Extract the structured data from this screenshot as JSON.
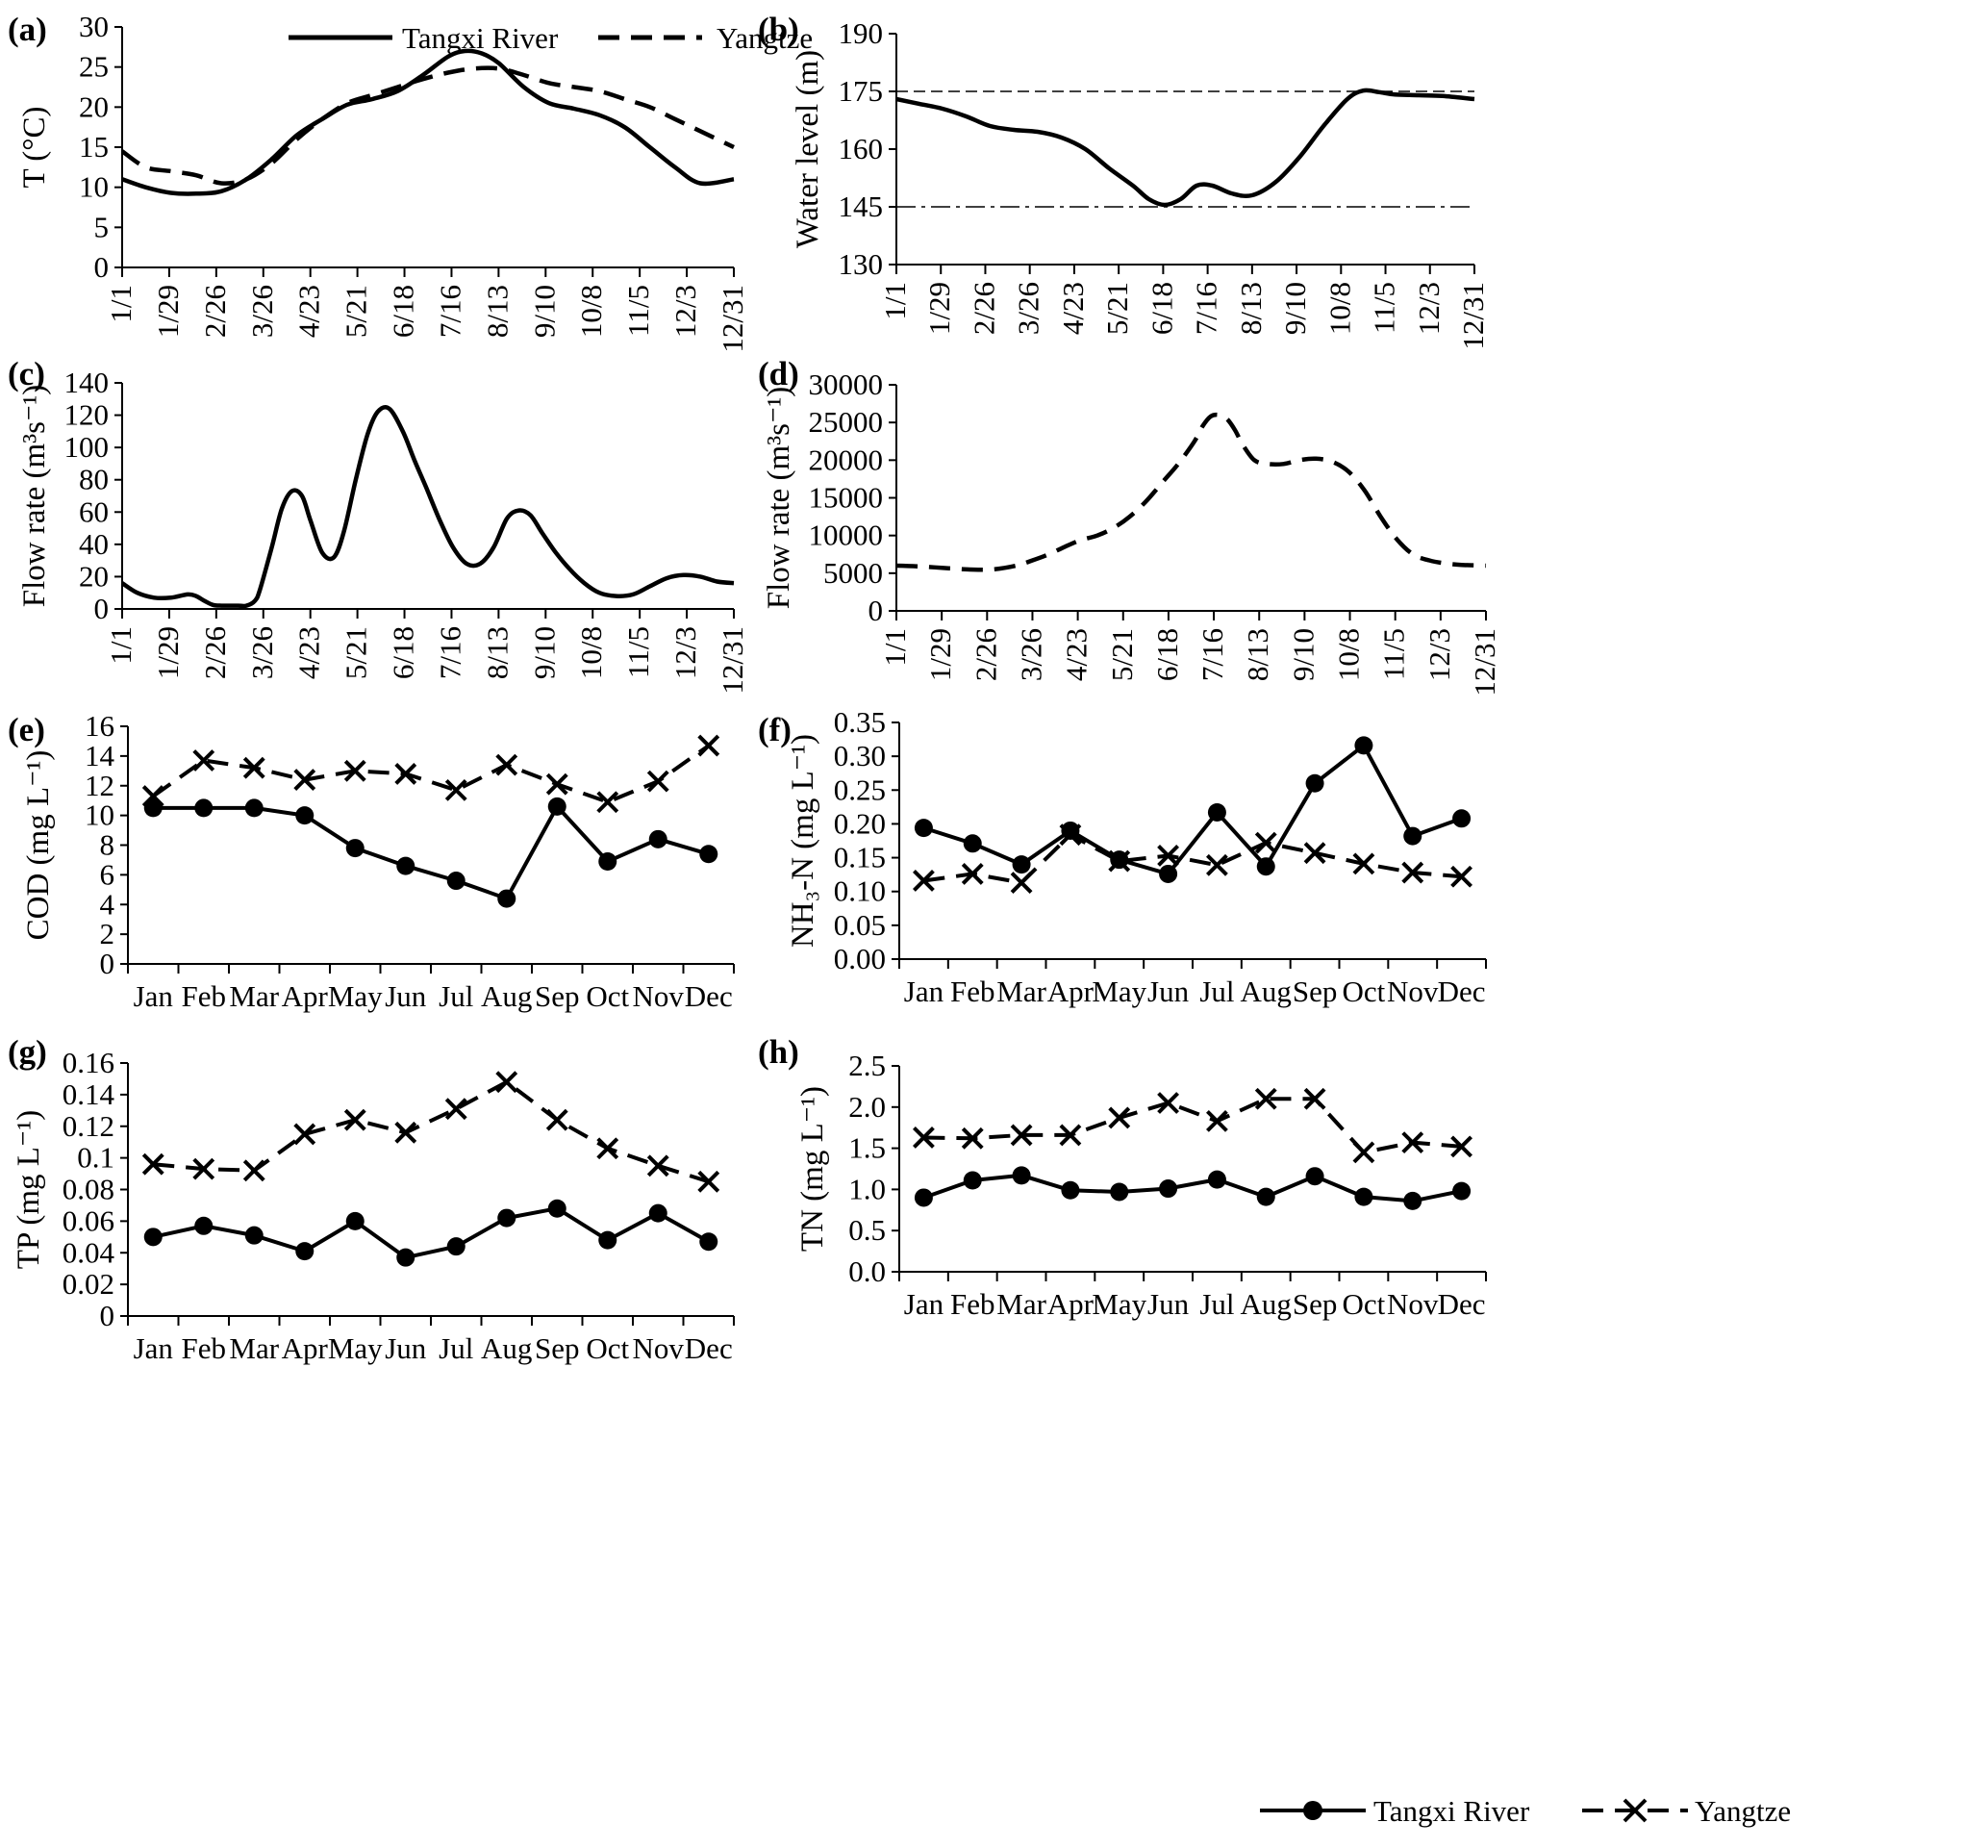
{
  "figure": {
    "legend_top": {
      "series_a": "Tangxi River",
      "series_b": "Yangtze"
    },
    "legend_bottom": {
      "series_a": "Tangxi River",
      "series_b": "Yangtze"
    },
    "date_ticks": [
      "1/1",
      "1/29",
      "2/26",
      "3/26",
      "4/23",
      "5/21",
      "6/18",
      "7/16",
      "8/13",
      "9/10",
      "10/8",
      "11/5",
      "12/3",
      "12/31"
    ],
    "month_ticks": [
      "Jan",
      "Feb",
      "Mar",
      "Apr",
      "May",
      "Jun",
      "Jul",
      "Aug",
      "Sep",
      "Oct",
      "Nov",
      "Dec"
    ]
  },
  "chart_data": [
    {
      "panel": "(a)",
      "type": "line",
      "ylabel": "T (°C)",
      "ylim": [
        0,
        30
      ],
      "yticks": [
        0,
        5,
        10,
        15,
        20,
        25,
        30
      ],
      "y_tick_labels": [
        "0",
        "5",
        "10",
        "15",
        "20",
        "25",
        "30"
      ],
      "x_unit": "day_of_year",
      "xlim": [
        1,
        365
      ],
      "series": [
        {
          "name": "Tangxi River",
          "style": "solid",
          "x": [
            1,
            15,
            30,
            45,
            60,
            75,
            90,
            105,
            120,
            135,
            150,
            165,
            180,
            195,
            205,
            215,
            225,
            240,
            255,
            270,
            285,
            300,
            315,
            330,
            345,
            365
          ],
          "y": [
            11,
            10,
            9.3,
            9.2,
            9.5,
            11,
            13.5,
            16.5,
            18.5,
            20.3,
            21,
            22,
            24,
            26.3,
            27,
            26.7,
            25.5,
            22.5,
            20.5,
            19.8,
            19,
            17.5,
            15,
            12.5,
            10.5,
            11
          ]
        },
        {
          "name": "Yangtze",
          "style": "dashed",
          "x": [
            1,
            15,
            30,
            45,
            60,
            75,
            90,
            105,
            120,
            135,
            150,
            165,
            180,
            195,
            210,
            225,
            240,
            255,
            270,
            285,
            300,
            315,
            330,
            345,
            365
          ],
          "y": [
            14.5,
            12.5,
            12,
            11.5,
            10.5,
            11,
            13,
            16,
            18.5,
            20.5,
            21.5,
            22.5,
            23.5,
            24.3,
            24.8,
            24.8,
            24,
            23,
            22.5,
            22,
            21,
            20,
            18.5,
            17,
            15
          ]
        }
      ]
    },
    {
      "panel": "(b)",
      "type": "line",
      "ylabel": "Water level (m)",
      "ylim": [
        130,
        190
      ],
      "yticks": [
        130,
        145,
        160,
        175,
        190
      ],
      "y_tick_labels": [
        "130",
        "145",
        "160",
        "175",
        "190"
      ],
      "x_unit": "day_of_year",
      "xlim": [
        1,
        365
      ],
      "reference_lines": [
        {
          "y": 175,
          "style": "dashed"
        },
        {
          "y": 145,
          "style": "dashdot"
        }
      ],
      "series": [
        {
          "name": "Yangtze",
          "style": "solid",
          "x": [
            1,
            15,
            30,
            45,
            60,
            75,
            90,
            105,
            120,
            135,
            150,
            160,
            170,
            180,
            190,
            200,
            212,
            225,
            240,
            255,
            270,
            285,
            295,
            305,
            315,
            330,
            345,
            365
          ],
          "y": [
            173,
            171.8,
            170.5,
            168.5,
            166,
            165,
            164.5,
            163,
            160,
            155,
            150.5,
            147,
            145.5,
            147,
            150.5,
            150.5,
            148.5,
            148,
            151.5,
            158,
            166,
            173,
            175.2,
            174.8,
            174.2,
            174,
            173.8,
            173
          ]
        }
      ]
    },
    {
      "panel": "(c)",
      "type": "line",
      "ylabel": "Flow rate (m³s⁻¹)",
      "ylim": [
        0,
        140
      ],
      "yticks": [
        0,
        20,
        40,
        60,
        80,
        100,
        120,
        140
      ],
      "y_tick_labels": [
        "0",
        "20",
        "40",
        "60",
        "80",
        "100",
        "120",
        "140"
      ],
      "x_unit": "day_of_year",
      "xlim": [
        1,
        365
      ],
      "series": [
        {
          "name": "Tangxi River",
          "style": "solid",
          "x": [
            1,
            10,
            20,
            30,
            40,
            45,
            50,
            55,
            60,
            65,
            70,
            75,
            80,
            83,
            90,
            96,
            102,
            108,
            113,
            120,
            127,
            133,
            140,
            147,
            153,
            160,
            168,
            175,
            182,
            190,
            198,
            206,
            214,
            222,
            230,
            237,
            244,
            251,
            259,
            267,
            276,
            285,
            295,
            305,
            315,
            325,
            335,
            345,
            355,
            365
          ],
          "y": [
            16,
            10,
            7,
            7,
            9,
            8,
            5,
            2.5,
            2,
            2,
            2,
            2,
            5,
            12,
            38,
            62,
            73,
            70,
            55,
            35,
            32,
            48,
            80,
            108,
            122,
            124,
            110,
            92,
            75,
            55,
            38,
            28,
            28,
            38,
            56,
            61,
            58,
            47,
            35,
            25,
            16,
            10,
            8,
            9,
            14,
            19,
            21,
            20,
            17,
            16
          ]
        }
      ]
    },
    {
      "panel": "(d)",
      "type": "line",
      "ylabel": "Flow rate (m³s⁻¹)",
      "ylim": [
        0,
        30000
      ],
      "yticks": [
        0,
        5000,
        10000,
        15000,
        20000,
        25000,
        30000
      ],
      "y_tick_labels": [
        "0",
        "5000",
        "10000",
        "15000",
        "20000",
        "25000",
        "30000"
      ],
      "x_unit": "day_of_year",
      "xlim": [
        1,
        365
      ],
      "series": [
        {
          "name": "Yangtze",
          "style": "dashed",
          "x": [
            1,
            15,
            30,
            45,
            60,
            75,
            85,
            95,
            105,
            115,
            125,
            135,
            145,
            155,
            165,
            175,
            185,
            190,
            195,
            200,
            205,
            210,
            215,
            222,
            230,
            240,
            250,
            260,
            270,
            280,
            290,
            300,
            310,
            320,
            330,
            340,
            350,
            365
          ],
          "y": [
            6000,
            5900,
            5700,
            5500,
            5500,
            6000,
            6700,
            7500,
            8500,
            9400,
            10000,
            11000,
            12500,
            14500,
            17000,
            19500,
            22500,
            24500,
            25800,
            26000,
            25500,
            24000,
            22000,
            20000,
            19500,
            19500,
            20000,
            20200,
            19800,
            18500,
            16000,
            12500,
            9500,
            7500,
            6700,
            6300,
            6100,
            6000
          ]
        }
      ]
    },
    {
      "panel": "(e)",
      "type": "line",
      "ylabel": "COD (mg L⁻¹)",
      "ylim": [
        0,
        16
      ],
      "yticks": [
        0,
        2,
        4,
        6,
        8,
        10,
        12,
        14,
        16
      ],
      "y_tick_labels": [
        "0",
        "2",
        "4",
        "6",
        "8",
        "10",
        "12",
        "14",
        "16"
      ],
      "categories": [
        "Jan",
        "Feb",
        "Mar",
        "Apr",
        "May",
        "Jun",
        "Jul",
        "Aug",
        "Sep",
        "Oct",
        "Nov",
        "Dec"
      ],
      "series": [
        {
          "name": "Tangxi River",
          "style": "solid",
          "marker": "circle",
          "values": [
            10.5,
            10.5,
            10.5,
            10.0,
            7.8,
            6.6,
            5.6,
            4.4,
            10.6,
            6.9,
            8.4,
            7.4
          ]
        },
        {
          "name": "Yangtze",
          "style": "dashed",
          "marker": "x",
          "values": [
            11.3,
            13.7,
            13.2,
            12.4,
            13.0,
            12.8,
            11.7,
            13.4,
            12.1,
            10.9,
            12.3,
            14.7
          ]
        }
      ]
    },
    {
      "panel": "(f)",
      "type": "line",
      "ylabel": "NH₃-N (mg L⁻¹)",
      "ylim": [
        0,
        0.35
      ],
      "yticks": [
        0,
        0.05,
        0.1,
        0.15,
        0.2,
        0.25,
        0.3,
        0.35
      ],
      "y_tick_labels": [
        "0.00",
        "0.05",
        "0.10",
        "0.15",
        "0.20",
        "0.25",
        "0.30",
        "0.35"
      ],
      "categories": [
        "Jan",
        "Feb",
        "Mar",
        "Apr",
        "May",
        "Jun",
        "Jul",
        "Aug",
        "Sep",
        "Oct",
        "Nov",
        "Dec"
      ],
      "series": [
        {
          "name": "Tangxi River",
          "style": "solid",
          "marker": "circle",
          "values": [
            0.194,
            0.171,
            0.14,
            0.19,
            0.147,
            0.126,
            0.217,
            0.137,
            0.26,
            0.316,
            0.182,
            0.208
          ]
        },
        {
          "name": "Yangtze",
          "style": "dashed",
          "marker": "x",
          "values": [
            0.116,
            0.126,
            0.113,
            0.184,
            0.145,
            0.153,
            0.139,
            0.172,
            0.157,
            0.141,
            0.128,
            0.122
          ]
        }
      ]
    },
    {
      "panel": "(g)",
      "type": "line",
      "ylabel": "TP (mg L⁻¹)",
      "ylim": [
        0,
        0.16
      ],
      "yticks": [
        0,
        0.02,
        0.04,
        0.06,
        0.08,
        0.1,
        0.12,
        0.14,
        0.16
      ],
      "y_tick_labels": [
        "0",
        "0.02",
        "0.04",
        "0.06",
        "0.08",
        "0.1",
        "0.12",
        "0.14",
        "0.16"
      ],
      "categories": [
        "Jan",
        "Feb",
        "Mar",
        "Apr",
        "May",
        "Jun",
        "Jul",
        "Aug",
        "Sep",
        "Oct",
        "Nov",
        "Dec"
      ],
      "series": [
        {
          "name": "Tangxi River",
          "style": "solid",
          "marker": "circle",
          "values": [
            0.05,
            0.057,
            0.051,
            0.041,
            0.06,
            0.037,
            0.044,
            0.062,
            0.068,
            0.048,
            0.065,
            0.047
          ]
        },
        {
          "name": "Yangtze",
          "style": "dashed",
          "marker": "x",
          "values": [
            0.096,
            0.093,
            0.092,
            0.115,
            0.124,
            0.116,
            0.131,
            0.148,
            0.124,
            0.106,
            0.095,
            0.085
          ]
        }
      ]
    },
    {
      "panel": "(h)",
      "type": "line",
      "ylabel": "TN (mg L⁻¹)",
      "ylim": [
        0,
        2.5
      ],
      "yticks": [
        0,
        0.5,
        1,
        1.5,
        2,
        2.5
      ],
      "y_tick_labels": [
        "0.0",
        "0.5",
        "1.0",
        "1.5",
        "2.0",
        "2.5"
      ],
      "categories": [
        "Jan",
        "Feb",
        "Mar",
        "Apr",
        "May",
        "Jun",
        "Jul",
        "Aug",
        "Sep",
        "Oct",
        "Nov",
        "Dec"
      ],
      "series": [
        {
          "name": "Tangxi River",
          "style": "solid",
          "marker": "circle",
          "values": [
            0.9,
            1.11,
            1.17,
            0.99,
            0.97,
            1.01,
            1.12,
            0.91,
            1.16,
            0.91,
            0.86,
            0.98
          ]
        },
        {
          "name": "Yangtze",
          "style": "dashed",
          "marker": "x",
          "values": [
            1.63,
            1.62,
            1.66,
            1.66,
            1.87,
            2.05,
            1.83,
            2.1,
            2.1,
            1.45,
            1.57,
            1.52
          ]
        }
      ]
    }
  ]
}
